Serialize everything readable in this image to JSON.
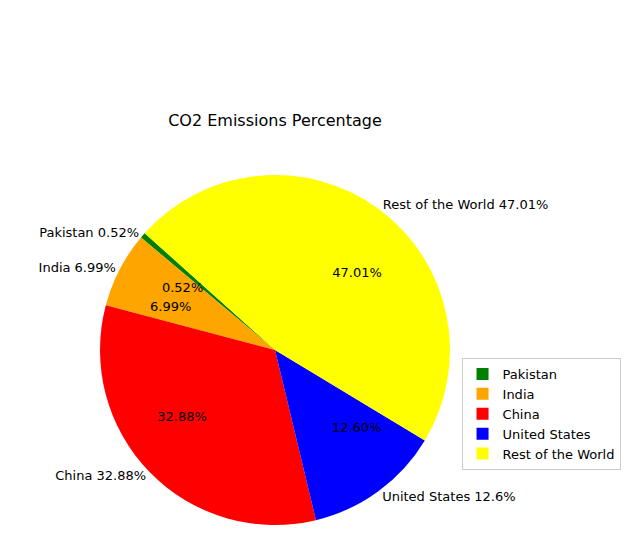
{
  "chart_data": {
    "type": "pie",
    "title": "CO2 Emissions Percentage",
    "categories": [
      "Pakistan",
      "India",
      "China",
      "United States",
      "Rest of the World"
    ],
    "values": [
      0.52,
      6.99,
      32.88,
      12.6,
      47.01
    ],
    "value_labels": [
      "0.52%",
      "6.99%",
      "32.88%",
      "12.60%",
      "47.01%"
    ],
    "slice_labels": [
      "Pakistan 0.52%",
      "India 6.99%",
      "China 32.88%",
      "United States 12.6%",
      "Rest of the World 47.01%"
    ],
    "colors": [
      "#008000",
      "#FFA500",
      "#FF0000",
      "#0000FF",
      "#FFFF00"
    ],
    "data_labels": true,
    "legend": "lower right"
  }
}
